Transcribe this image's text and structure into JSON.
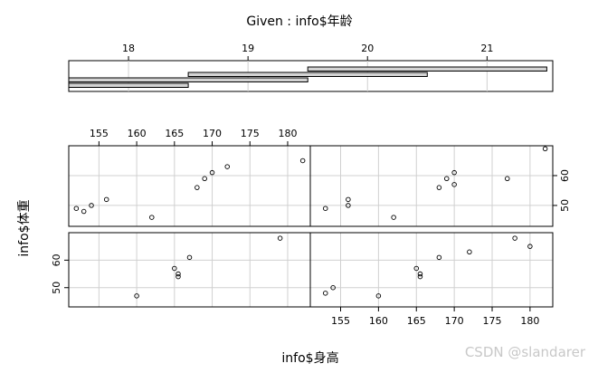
{
  "chart_data": {
    "type": "scatter",
    "given_title": "Given : info$年龄",
    "xlabel": "info$身高",
    "ylabel": "info$体重",
    "given_axis": {
      "ticks": [
        18,
        19,
        20,
        21
      ],
      "range": [
        17.5,
        21.55
      ]
    },
    "given_intervals": [
      [
        17.5,
        18.5
      ],
      [
        17.5,
        19.5
      ],
      [
        18.5,
        20.5
      ],
      [
        19.5,
        21.5
      ]
    ],
    "x_range": [
      151,
      183
    ],
    "y_range": [
      43,
      70
    ],
    "x_ticks": [
      155,
      160,
      165,
      170,
      175,
      180
    ],
    "y_ticks": [
      50,
      60
    ],
    "panels": [
      {
        "interval": 1,
        "x": [
          152,
          153,
          154,
          156,
          162,
          168,
          169,
          170,
          172,
          182
        ],
        "y": [
          49,
          48,
          50,
          52,
          46,
          56,
          59,
          61,
          63,
          65
        ]
      },
      {
        "interval": 2,
        "x": [
          153,
          156,
          156,
          162,
          168,
          169,
          170,
          170,
          177,
          182
        ],
        "y": [
          49,
          52,
          50,
          46,
          56,
          59,
          61,
          57,
          59,
          69
        ]
      },
      {
        "interval": 0,
        "x": [
          160,
          165,
          165.5,
          165.5,
          167,
          179
        ],
        "y": [
          47,
          57,
          54,
          55,
          61,
          68
        ]
      },
      {
        "interval": 3,
        "x": [
          153,
          154,
          160,
          165,
          165.5,
          165.5,
          168,
          172,
          178,
          180
        ],
        "y": [
          48,
          50,
          47,
          57,
          54,
          55,
          61,
          63,
          68,
          65
        ]
      }
    ]
  },
  "watermark": "CSDN @slandarer"
}
